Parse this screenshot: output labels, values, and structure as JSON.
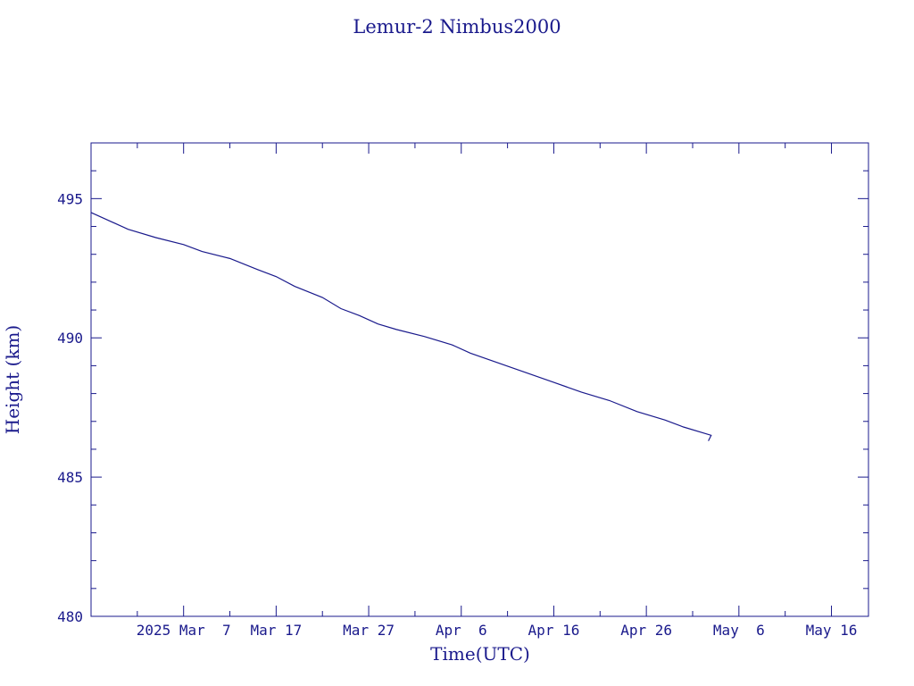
{
  "chart_data": {
    "type": "line",
    "title": "Lemur-2 Nimbus2000",
    "xlabel": "Time(UTC)",
    "ylabel": "Height (km)",
    "x_range_days": [
      0,
      84
    ],
    "ylim": [
      480,
      497
    ],
    "x_ticks": [
      {
        "day": 10,
        "label": "2025 Mar  7"
      },
      {
        "day": 20,
        "label": "Mar 17"
      },
      {
        "day": 30,
        "label": "Mar 27"
      },
      {
        "day": 40,
        "label": "Apr  6"
      },
      {
        "day": 50,
        "label": "Apr 16"
      },
      {
        "day": 60,
        "label": "Apr 26"
      },
      {
        "day": 70,
        "label": "May  6"
      },
      {
        "day": 80,
        "label": "May 16"
      }
    ],
    "x_minor_days": [
      5,
      15,
      25,
      35,
      45,
      55,
      65,
      75
    ],
    "y_ticks": [
      480,
      485,
      490,
      495
    ],
    "y_minor_step": 1,
    "series": [
      {
        "color": "#1a1a8c",
        "points": [
          [
            0,
            494.5
          ],
          [
            2,
            494.2
          ],
          [
            4,
            493.9
          ],
          [
            7,
            493.6
          ],
          [
            10,
            493.35
          ],
          [
            12,
            493.1
          ],
          [
            15,
            492.85
          ],
          [
            18,
            492.45
          ],
          [
            20,
            492.2
          ],
          [
            22,
            491.85
          ],
          [
            25,
            491.45
          ],
          [
            27,
            491.05
          ],
          [
            29,
            490.8
          ],
          [
            31,
            490.5
          ],
          [
            33,
            490.3
          ],
          [
            36,
            490.05
          ],
          [
            39,
            489.75
          ],
          [
            41,
            489.45
          ],
          [
            44,
            489.1
          ],
          [
            47,
            488.75
          ],
          [
            50,
            488.4
          ],
          [
            53,
            488.05
          ],
          [
            56,
            487.75
          ],
          [
            59,
            487.35
          ],
          [
            62,
            487.05
          ],
          [
            64,
            486.8
          ],
          [
            67,
            486.5
          ],
          [
            66.7,
            486.3
          ]
        ]
      }
    ]
  }
}
